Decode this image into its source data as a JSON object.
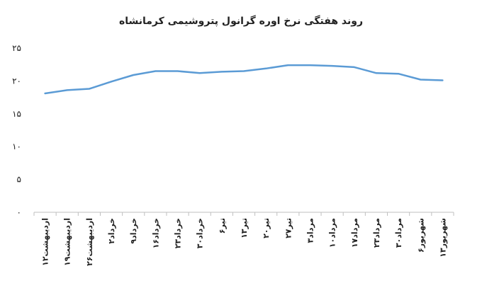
{
  "chart_data": {
    "type": "line",
    "title": "روند هفتگی نرخ اوره گرانول پتروشیمی کرمانشاه",
    "xlabel": "",
    "ylabel": "",
    "ylim": [
      0,
      25
    ],
    "yticks": [
      0,
      5,
      10,
      15,
      20,
      25
    ],
    "ytick_labels": [
      "۰",
      "۵",
      "۱۰",
      "۱۵",
      "۲۰",
      "۲۵"
    ],
    "grid": false,
    "legend": "none",
    "color": "#5b9bd5",
    "categories": [
      "۱۲اردیبهشت",
      "۱۹اردیبهشت",
      "۲۶اردیبهشت",
      "۲خرداد",
      "۹خرداد",
      "۱۶خرداد",
      "۲۳خرداد",
      "۳۰خرداد",
      "۶تیر",
      "۱۳تیر",
      "۲۰تیر",
      "۲۷تیر",
      "۳مرداد",
      "۱۰مرداد",
      "۱۷مرداد",
      "۲۳مرداد",
      "۳۰مرداد",
      "۶شهریور",
      "۱۳شهریور"
    ],
    "series": [
      {
        "values": [
          18.1,
          18.6,
          18.8,
          19.9,
          20.9,
          21.5,
          21.5,
          21.2,
          21.4,
          21.5,
          21.9,
          22.4,
          22.4,
          22.3,
          22.1,
          21.2,
          21.1,
          20.2,
          20.1
        ]
      }
    ]
  }
}
